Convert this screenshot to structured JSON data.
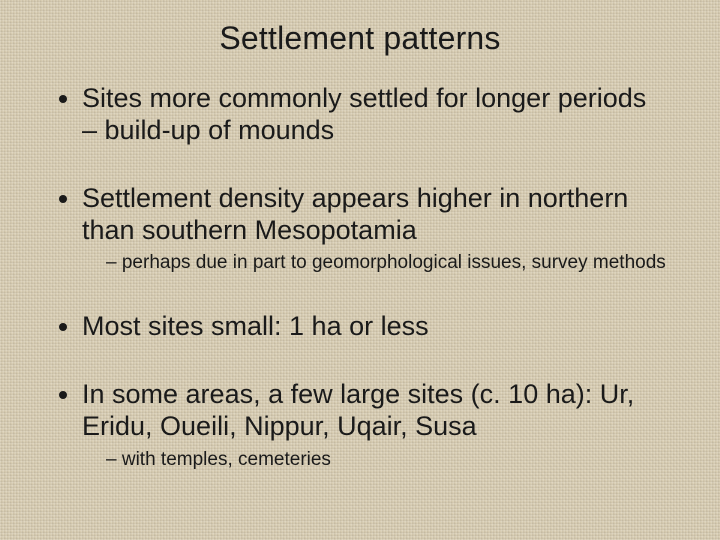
{
  "slide": {
    "title": "Settlement patterns",
    "background_color": "#d8cdb2",
    "text_color": "#1a1a1a",
    "title_fontsize": 32,
    "body_fontsize": 27,
    "sub_fontsize": 19,
    "font_family": "Arial",
    "bullets": [
      {
        "text": "Sites more commonly settled for longer periods – build-up of mounds",
        "sub": []
      },
      {
        "text": "Settlement density appears higher in northern than southern Mesopotamia",
        "sub": [
          "perhaps due in part to geomorphological issues, survey methods"
        ]
      },
      {
        "text": "Most sites small: 1 ha or less",
        "sub": []
      },
      {
        "text": "In some areas, a few large sites (c. 10 ha): Ur, Eridu, Oueili, Nippur, Uqair, Susa",
        "sub": [
          "with temples, cemeteries"
        ]
      }
    ]
  }
}
